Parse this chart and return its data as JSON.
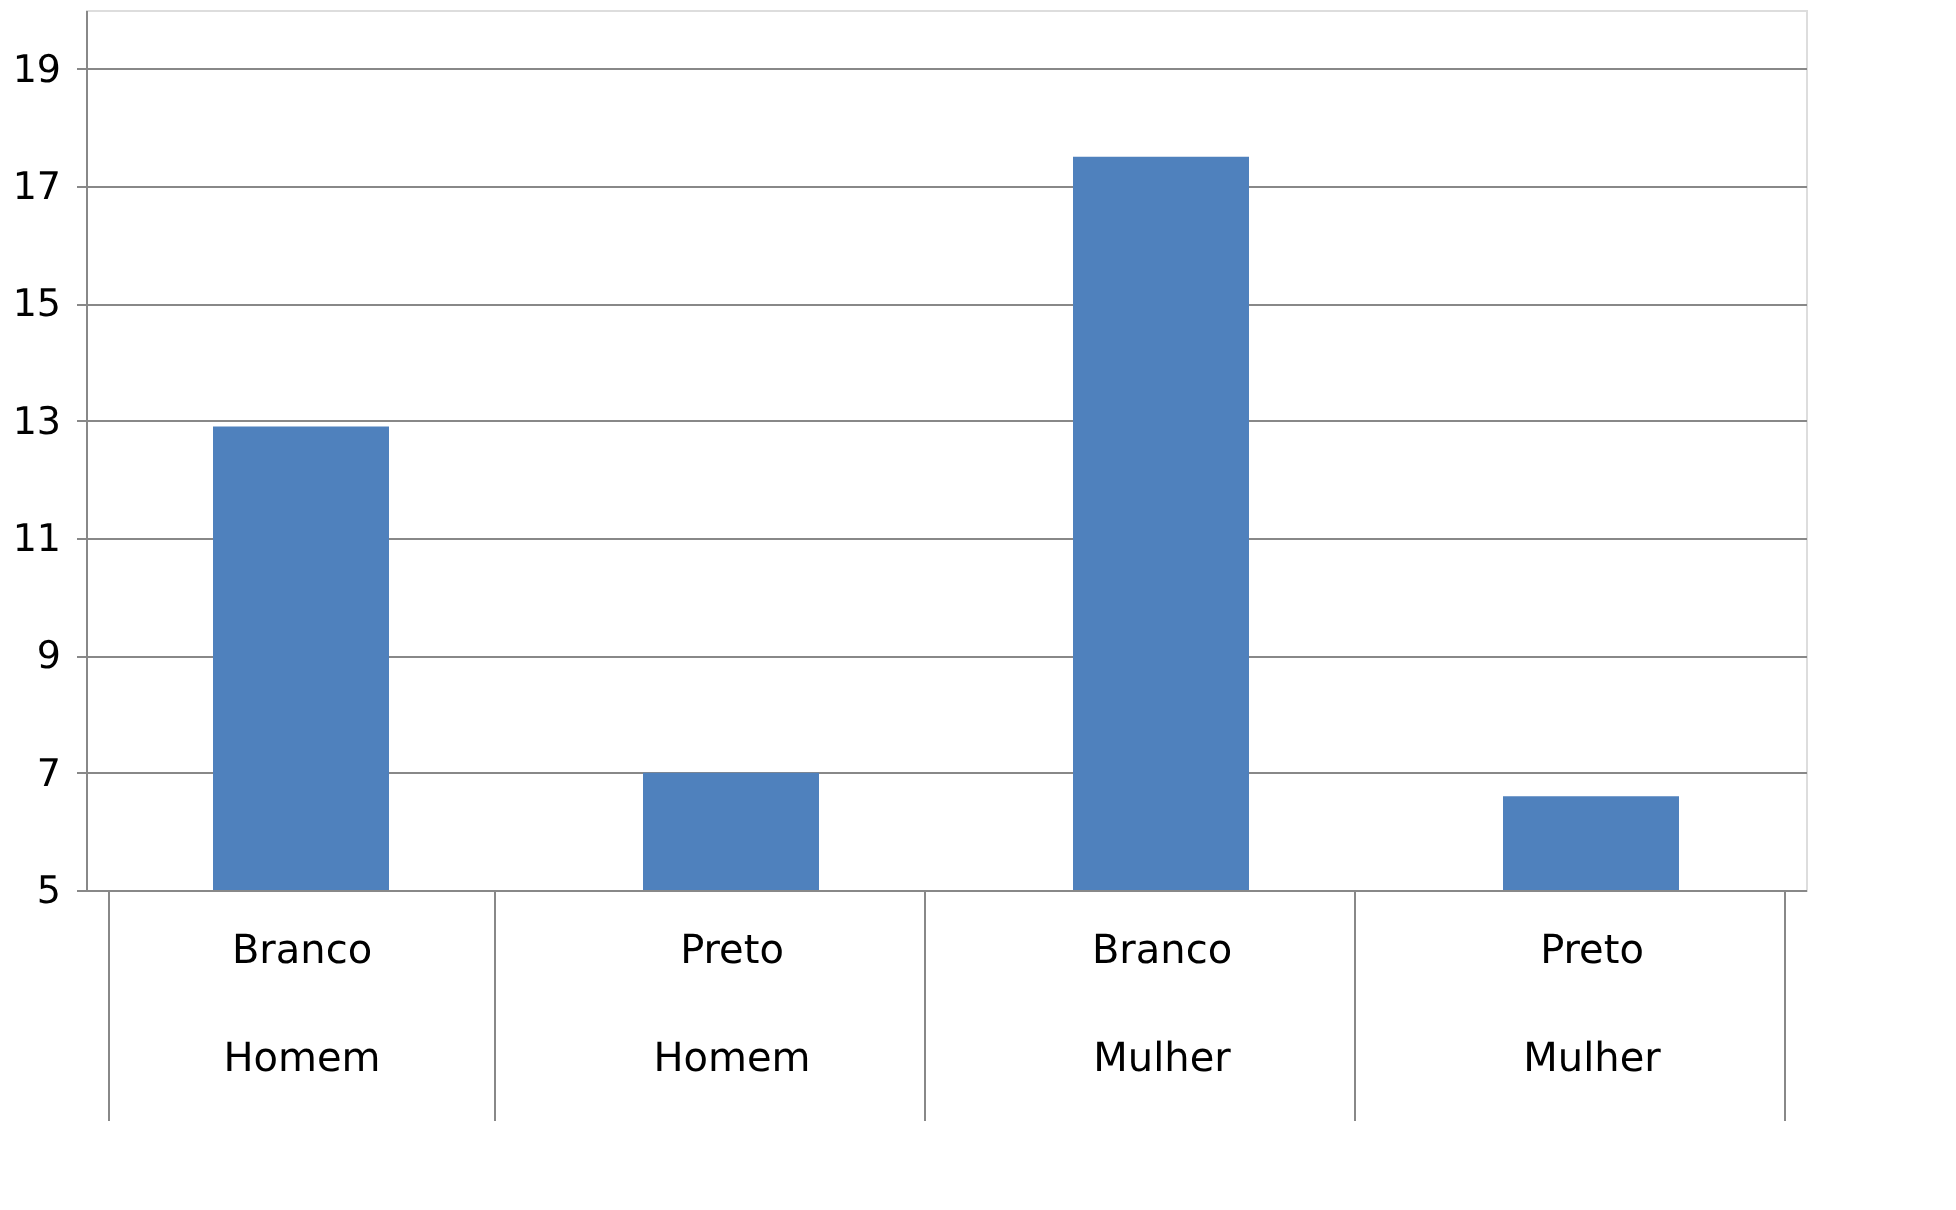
{
  "chart_data": {
    "type": "bar",
    "categories": [
      "Branco\nHomem",
      "Preto\nHomem",
      "Branco\nMulher",
      "Preto\nMulher"
    ],
    "values": [
      12.9,
      7.0,
      17.5,
      6.6
    ],
    "color": "#4f81bd",
    "ylim": [
      5,
      20
    ],
    "yticks": [
      5,
      7,
      9,
      11,
      13,
      15,
      17,
      19
    ],
    "grid": "y"
  }
}
